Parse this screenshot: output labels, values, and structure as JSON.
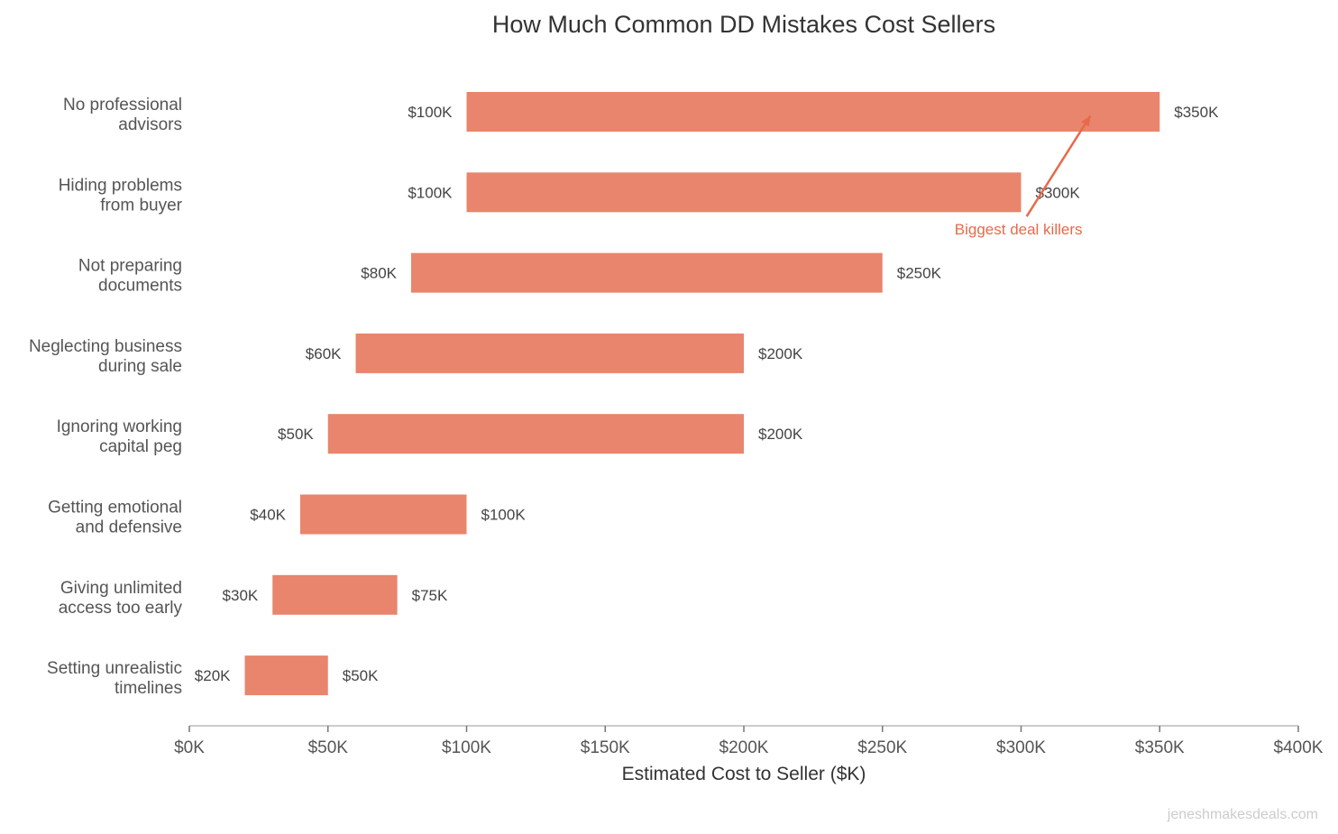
{
  "chart_data": {
    "type": "bar",
    "subtype": "floating-range-horizontal",
    "title": "How Much Common DD Mistakes Cost Sellers",
    "xlabel": "Estimated Cost to Seller ($K)",
    "ylabel": "",
    "xlim": [
      0,
      400
    ],
    "xticks": [
      0,
      50,
      100,
      150,
      200,
      250,
      300,
      350,
      400
    ],
    "xtick_labels": [
      "$0K",
      "$50K",
      "$100K",
      "$150K",
      "$200K",
      "$250K",
      "$300K",
      "$350K",
      "$400K"
    ],
    "categories": [
      [
        "No professional",
        "advisors"
      ],
      [
        "Hiding problems",
        "from buyer"
      ],
      [
        "Not preparing",
        "documents"
      ],
      [
        "Neglecting business",
        "during sale"
      ],
      [
        "Ignoring working",
        "capital peg"
      ],
      [
        "Getting emotional",
        "and defensive"
      ],
      [
        "Giving unlimited",
        "access too early"
      ],
      [
        "Setting unrealistic",
        "timelines"
      ]
    ],
    "low": [
      100,
      100,
      80,
      60,
      50,
      40,
      30,
      20
    ],
    "high": [
      350,
      300,
      250,
      200,
      200,
      100,
      75,
      50
    ],
    "low_labels": [
      "$100K",
      "$100K",
      "$80K",
      "$60K",
      "$50K",
      "$40K",
      "$30K",
      "$20K"
    ],
    "high_labels": [
      "$350K",
      "$300K",
      "$250K",
      "$200K",
      "$200K",
      "$100K",
      "$75K",
      "$50K"
    ],
    "bar_color": "#E8856C",
    "annotation": {
      "text": "Biggest deal killers",
      "color": "#E8694A",
      "from": [
        302,
        1.3
      ],
      "to": [
        325,
        0.05
      ]
    },
    "grid": false,
    "legend": "none"
  },
  "watermark": "jeneshmakesdeals.com"
}
